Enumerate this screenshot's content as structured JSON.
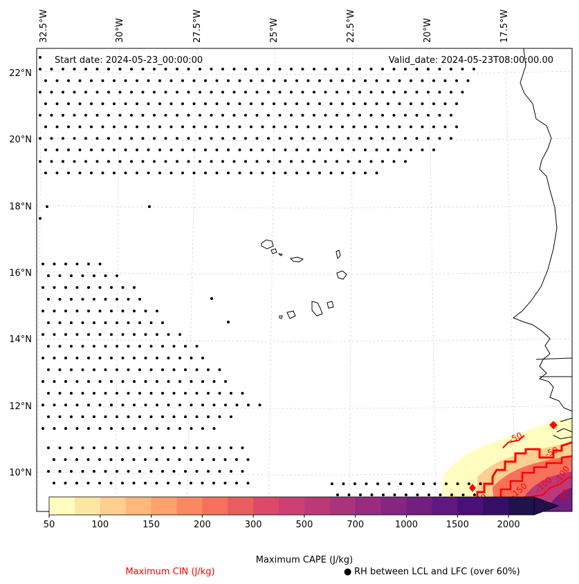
{
  "map": {
    "start_date": "Start date: 2024-05-23_00:00:00",
    "valid_date": "Valid_date: 2024-05-23T08:00:00.00",
    "lon_labels": [
      "32.5°W",
      "30°W",
      "27.5°W",
      "25°W",
      "22.5°W",
      "20°W",
      "17.5°W"
    ],
    "lat_labels": [
      "22°N",
      "20°N",
      "18°N",
      "16°N",
      "14°N",
      "12°N",
      "10°N"
    ],
    "cin_contour_labels": [
      "-50",
      "-50",
      "-100",
      "-150",
      "-100",
      "-50",
      "-50"
    ]
  },
  "colorbar": {
    "label": "Maximum CAPE (J/kg)",
    "ticks": [
      "50",
      "100",
      "150",
      "200",
      "300",
      "500",
      "700",
      "1000",
      "1500",
      "2000"
    ],
    "colors": [
      "#fefdbf",
      "#fde6a3",
      "#fecf8e",
      "#feb87b",
      "#fea16e",
      "#fb8861",
      "#f6705b",
      "#e95d5d",
      "#dd4968",
      "#ce3f73",
      "#bc3978",
      "#aa337d",
      "#972c80",
      "#852681",
      "#721f81",
      "#5f187f",
      "#4a1079",
      "#350f66",
      "#22114d"
    ]
  },
  "legend": {
    "cin_label": "Maximum CIN (J/kg)",
    "cin_color": "#ff0000",
    "rh_label": "RH between LCL and LFC (over 60%)",
    "rh_marker": "●"
  }
}
